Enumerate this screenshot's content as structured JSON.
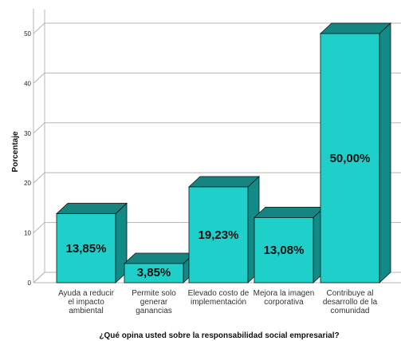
{
  "chart_data": {
    "type": "bar",
    "categories": [
      "Ayuda a reducir el impacto ambiental",
      "Permite solo generar ganancias",
      "Elevado costo de implementación",
      "Mejora la imagen corporativa",
      "Contribuye al desarrollo de la comunidad"
    ],
    "category_lines": [
      [
        "Ayuda a reducir",
        "el impacto",
        "ambiental"
      ],
      [
        "Permite solo",
        "generar",
        "ganancias"
      ],
      [
        "Elevado costo de",
        "implementación"
      ],
      [
        "Mejora la imagen",
        "corporativa"
      ],
      [
        "Contribuye al",
        "desarrollo de la",
        "comunidad"
      ]
    ],
    "values": [
      13.85,
      3.85,
      19.23,
      13.08,
      50.0
    ],
    "value_labels": [
      "13,85%",
      "3,85%",
      "19,23%",
      "13,08%",
      "50,00%"
    ],
    "yticks": [
      0,
      10,
      20,
      30,
      40,
      50
    ],
    "ylim": [
      0,
      55
    ],
    "ylabel": "Porcentaje",
    "xlabel": "¿Qué opina usted sobre la responsabilidad social empresarial?",
    "grid": true,
    "style": "3d",
    "colors": {
      "front": "#1fcfca",
      "top": "#168582",
      "side": "#128a86",
      "outline": "#111111",
      "grid": "#b5b5b5"
    }
  }
}
